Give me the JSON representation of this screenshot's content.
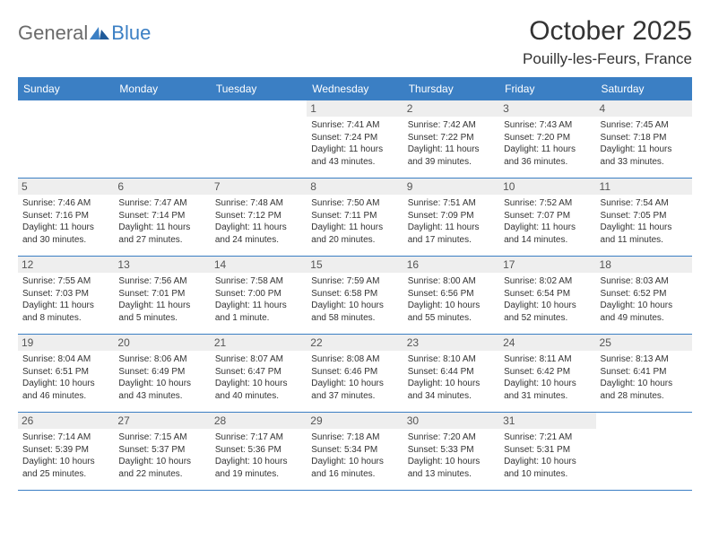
{
  "brand": {
    "part1": "General",
    "part2": "Blue"
  },
  "title": "October 2025",
  "location": "Pouilly-les-Feurs, France",
  "colors": {
    "header_bg": "#3b7fc4",
    "header_text": "#ffffff",
    "daynum_bg": "#eeeeee",
    "border": "#3b7fc4",
    "text": "#333333"
  },
  "daynames": [
    "Sunday",
    "Monday",
    "Tuesday",
    "Wednesday",
    "Thursday",
    "Friday",
    "Saturday"
  ],
  "weeks": [
    [
      {
        "n": "",
        "sr": "",
        "ss": "",
        "dl1": "",
        "dl2": ""
      },
      {
        "n": "",
        "sr": "",
        "ss": "",
        "dl1": "",
        "dl2": ""
      },
      {
        "n": "",
        "sr": "",
        "ss": "",
        "dl1": "",
        "dl2": ""
      },
      {
        "n": "1",
        "sr": "Sunrise: 7:41 AM",
        "ss": "Sunset: 7:24 PM",
        "dl1": "Daylight: 11 hours",
        "dl2": "and 43 minutes."
      },
      {
        "n": "2",
        "sr": "Sunrise: 7:42 AM",
        "ss": "Sunset: 7:22 PM",
        "dl1": "Daylight: 11 hours",
        "dl2": "and 39 minutes."
      },
      {
        "n": "3",
        "sr": "Sunrise: 7:43 AM",
        "ss": "Sunset: 7:20 PM",
        "dl1": "Daylight: 11 hours",
        "dl2": "and 36 minutes."
      },
      {
        "n": "4",
        "sr": "Sunrise: 7:45 AM",
        "ss": "Sunset: 7:18 PM",
        "dl1": "Daylight: 11 hours",
        "dl2": "and 33 minutes."
      }
    ],
    [
      {
        "n": "5",
        "sr": "Sunrise: 7:46 AM",
        "ss": "Sunset: 7:16 PM",
        "dl1": "Daylight: 11 hours",
        "dl2": "and 30 minutes."
      },
      {
        "n": "6",
        "sr": "Sunrise: 7:47 AM",
        "ss": "Sunset: 7:14 PM",
        "dl1": "Daylight: 11 hours",
        "dl2": "and 27 minutes."
      },
      {
        "n": "7",
        "sr": "Sunrise: 7:48 AM",
        "ss": "Sunset: 7:12 PM",
        "dl1": "Daylight: 11 hours",
        "dl2": "and 24 minutes."
      },
      {
        "n": "8",
        "sr": "Sunrise: 7:50 AM",
        "ss": "Sunset: 7:11 PM",
        "dl1": "Daylight: 11 hours",
        "dl2": "and 20 minutes."
      },
      {
        "n": "9",
        "sr": "Sunrise: 7:51 AM",
        "ss": "Sunset: 7:09 PM",
        "dl1": "Daylight: 11 hours",
        "dl2": "and 17 minutes."
      },
      {
        "n": "10",
        "sr": "Sunrise: 7:52 AM",
        "ss": "Sunset: 7:07 PM",
        "dl1": "Daylight: 11 hours",
        "dl2": "and 14 minutes."
      },
      {
        "n": "11",
        "sr": "Sunrise: 7:54 AM",
        "ss": "Sunset: 7:05 PM",
        "dl1": "Daylight: 11 hours",
        "dl2": "and 11 minutes."
      }
    ],
    [
      {
        "n": "12",
        "sr": "Sunrise: 7:55 AM",
        "ss": "Sunset: 7:03 PM",
        "dl1": "Daylight: 11 hours",
        "dl2": "and 8 minutes."
      },
      {
        "n": "13",
        "sr": "Sunrise: 7:56 AM",
        "ss": "Sunset: 7:01 PM",
        "dl1": "Daylight: 11 hours",
        "dl2": "and 5 minutes."
      },
      {
        "n": "14",
        "sr": "Sunrise: 7:58 AM",
        "ss": "Sunset: 7:00 PM",
        "dl1": "Daylight: 11 hours",
        "dl2": "and 1 minute."
      },
      {
        "n": "15",
        "sr": "Sunrise: 7:59 AM",
        "ss": "Sunset: 6:58 PM",
        "dl1": "Daylight: 10 hours",
        "dl2": "and 58 minutes."
      },
      {
        "n": "16",
        "sr": "Sunrise: 8:00 AM",
        "ss": "Sunset: 6:56 PM",
        "dl1": "Daylight: 10 hours",
        "dl2": "and 55 minutes."
      },
      {
        "n": "17",
        "sr": "Sunrise: 8:02 AM",
        "ss": "Sunset: 6:54 PM",
        "dl1": "Daylight: 10 hours",
        "dl2": "and 52 minutes."
      },
      {
        "n": "18",
        "sr": "Sunrise: 8:03 AM",
        "ss": "Sunset: 6:52 PM",
        "dl1": "Daylight: 10 hours",
        "dl2": "and 49 minutes."
      }
    ],
    [
      {
        "n": "19",
        "sr": "Sunrise: 8:04 AM",
        "ss": "Sunset: 6:51 PM",
        "dl1": "Daylight: 10 hours",
        "dl2": "and 46 minutes."
      },
      {
        "n": "20",
        "sr": "Sunrise: 8:06 AM",
        "ss": "Sunset: 6:49 PM",
        "dl1": "Daylight: 10 hours",
        "dl2": "and 43 minutes."
      },
      {
        "n": "21",
        "sr": "Sunrise: 8:07 AM",
        "ss": "Sunset: 6:47 PM",
        "dl1": "Daylight: 10 hours",
        "dl2": "and 40 minutes."
      },
      {
        "n": "22",
        "sr": "Sunrise: 8:08 AM",
        "ss": "Sunset: 6:46 PM",
        "dl1": "Daylight: 10 hours",
        "dl2": "and 37 minutes."
      },
      {
        "n": "23",
        "sr": "Sunrise: 8:10 AM",
        "ss": "Sunset: 6:44 PM",
        "dl1": "Daylight: 10 hours",
        "dl2": "and 34 minutes."
      },
      {
        "n": "24",
        "sr": "Sunrise: 8:11 AM",
        "ss": "Sunset: 6:42 PM",
        "dl1": "Daylight: 10 hours",
        "dl2": "and 31 minutes."
      },
      {
        "n": "25",
        "sr": "Sunrise: 8:13 AM",
        "ss": "Sunset: 6:41 PM",
        "dl1": "Daylight: 10 hours",
        "dl2": "and 28 minutes."
      }
    ],
    [
      {
        "n": "26",
        "sr": "Sunrise: 7:14 AM",
        "ss": "Sunset: 5:39 PM",
        "dl1": "Daylight: 10 hours",
        "dl2": "and 25 minutes."
      },
      {
        "n": "27",
        "sr": "Sunrise: 7:15 AM",
        "ss": "Sunset: 5:37 PM",
        "dl1": "Daylight: 10 hours",
        "dl2": "and 22 minutes."
      },
      {
        "n": "28",
        "sr": "Sunrise: 7:17 AM",
        "ss": "Sunset: 5:36 PM",
        "dl1": "Daylight: 10 hours",
        "dl2": "and 19 minutes."
      },
      {
        "n": "29",
        "sr": "Sunrise: 7:18 AM",
        "ss": "Sunset: 5:34 PM",
        "dl1": "Daylight: 10 hours",
        "dl2": "and 16 minutes."
      },
      {
        "n": "30",
        "sr": "Sunrise: 7:20 AM",
        "ss": "Sunset: 5:33 PM",
        "dl1": "Daylight: 10 hours",
        "dl2": "and 13 minutes."
      },
      {
        "n": "31",
        "sr": "Sunrise: 7:21 AM",
        "ss": "Sunset: 5:31 PM",
        "dl1": "Daylight: 10 hours",
        "dl2": "and 10 minutes."
      },
      {
        "n": "",
        "sr": "",
        "ss": "",
        "dl1": "",
        "dl2": ""
      }
    ]
  ]
}
